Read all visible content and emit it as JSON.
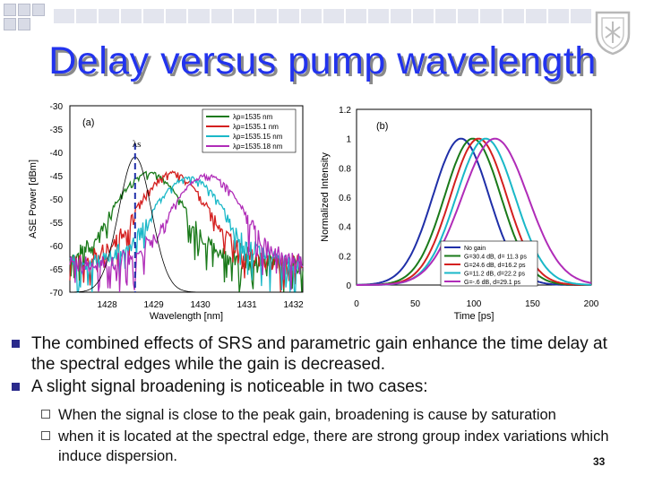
{
  "slide": {
    "title": "Delay versus pump wavelength",
    "page_number": "33"
  },
  "bullets": [
    "The combined effects of SRS and parametric gain enhance the time delay at the spectral edges while the gain is decreased.",
    "A slight signal broadening is noticeable in two cases:"
  ],
  "sub_bullets": [
    "When the signal is close to the peak gain, broadening is cause by saturation",
    "when it is located at the spectral edge, there are strong group index variations which induce dispersion."
  ],
  "chart_data": [
    {
      "type": "line",
      "panel_label": "(a)",
      "xlabel": "Wavelength [nm]",
      "ylabel": "ASE Power [dBm]",
      "xlim": [
        1427.2,
        1432.2
      ],
      "ylim": [
        -70,
        -30
      ],
      "x_ticks": [
        1428,
        1429,
        1430,
        1431,
        1432
      ],
      "y_ticks": [
        -30,
        -35,
        -40,
        -45,
        -50,
        -55,
        -60,
        -65,
        -70
      ],
      "annotation": "λs",
      "signal_wavelength": 1428.6,
      "legend": "top-right",
      "series": [
        {
          "name": "λp=1535 nm",
          "color": "#1a7a1a",
          "peak_x": 1428.9,
          "peak_y": -44
        },
        {
          "name": "λp=1535.1 nm",
          "color": "#d42020",
          "peak_x": 1429.4,
          "peak_y": -44
        },
        {
          "name": "λp=1535.15 nm",
          "color": "#1ab8c8",
          "peak_x": 1429.75,
          "peak_y": -45
        },
        {
          "name": "λp=1535.18 nm",
          "color": "#b02cb8",
          "peak_x": 1430.15,
          "peak_y": -44.5
        },
        {
          "name": "",
          "color": "#000000",
          "peak_x": 1428.6,
          "peak_y": -41
        }
      ]
    },
    {
      "type": "line",
      "panel_label": "(b)",
      "xlabel": "Time [ps]",
      "ylabel": "Normalized Intensity",
      "xlim": [
        0,
        200
      ],
      "ylim": [
        0,
        1.2
      ],
      "x_ticks": [
        0,
        50,
        100,
        150,
        200
      ],
      "y_ticks": [
        0,
        0.2,
        0.4,
        0.6,
        0.8,
        1,
        1.2
      ],
      "legend": "bottom-right",
      "series": [
        {
          "name": "No gain",
          "color": "#1f2fa8",
          "center": 89,
          "sigma": 24
        },
        {
          "name": "G=30.4 dB, d= 11.3 ps",
          "color": "#1a7a1a",
          "center": 99,
          "sigma": 24
        },
        {
          "name": "G=24.6 dB, d=16.2 ps",
          "color": "#d42020",
          "center": 104,
          "sigma": 24
        },
        {
          "name": "G=11.2 dB, d=22.2 ps",
          "color": "#1ab8c8",
          "center": 110,
          "sigma": 25
        },
        {
          "name": "G=-.6 dB, d=29.1 ps",
          "color": "#b02cb8",
          "center": 118,
          "sigma": 28
        }
      ]
    }
  ]
}
